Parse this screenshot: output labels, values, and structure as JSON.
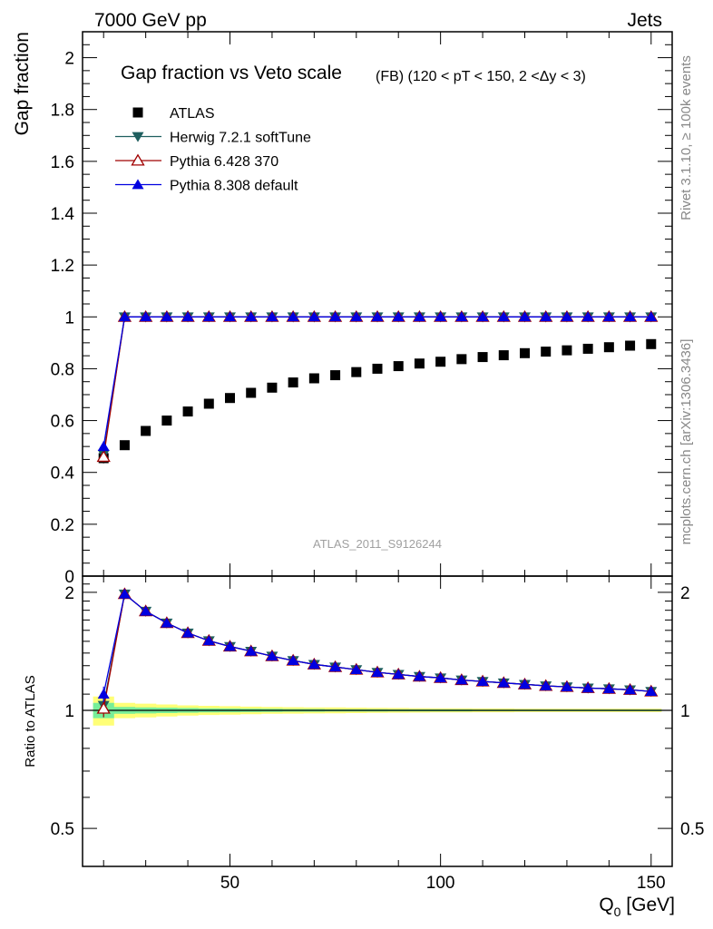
{
  "header": {
    "left": "7000 GeV pp",
    "right": "Jets"
  },
  "side_labels": {
    "rivet": "Rivet 3.1.10, ≥ 100k events",
    "mcplots": "mcplots.cern.ch [arXiv:1306.3436]"
  },
  "chart_data": [
    {
      "type": "scatter",
      "panel": "main",
      "title": "Gap fraction vs Veto scale",
      "subtitle": "(FB) (120 < pT < 150, 2 <Δy < 3)",
      "ylabel": "Gap fraction",
      "xlabel": "",
      "xlim": [
        15,
        155
      ],
      "ylim": [
        0,
        2.1
      ],
      "yticks": [
        0,
        0.2,
        0.4,
        0.6,
        0.8,
        1,
        1.2,
        1.4,
        1.6,
        1.8,
        2
      ],
      "ytick_labels": [
        "0",
        "0.2",
        "0.4",
        "0.6",
        "0.8",
        "1",
        "1.2",
        "1.4",
        "1.6",
        "1.8",
        "2"
      ],
      "watermark": "ATLAS_2011_S9126244",
      "legend_position": "top-left",
      "x": [
        20,
        25,
        30,
        35,
        40,
        45,
        50,
        55,
        60,
        65,
        70,
        75,
        80,
        85,
        90,
        95,
        100,
        105,
        110,
        115,
        120,
        125,
        130,
        135,
        140,
        145,
        150
      ],
      "series": [
        {
          "name": "ATLAS",
          "marker": "square",
          "color": "#000000",
          "values": [
            0.455,
            0.505,
            0.56,
            0.6,
            0.635,
            0.665,
            0.687,
            0.707,
            0.727,
            0.747,
            0.763,
            0.775,
            0.787,
            0.8,
            0.81,
            0.82,
            0.827,
            0.837,
            0.845,
            0.852,
            0.86,
            0.866,
            0.871,
            0.877,
            0.883,
            0.889,
            0.895
          ],
          "errors": [
            0.02,
            0.006,
            0.006,
            0.006,
            0.006,
            0.006,
            0.006,
            0.006,
            0.006,
            0.006,
            0.006,
            0.006,
            0.006,
            0.006,
            0.006,
            0.006,
            0.006,
            0.006,
            0.006,
            0.006,
            0.006,
            0.006,
            0.006,
            0.006,
            0.006,
            0.006,
            0.006
          ]
        },
        {
          "name": "Herwig 7.2.1 softTune",
          "marker": "triangle-down",
          "color": "#1f5f5f",
          "values": [
            0.47,
            1,
            1,
            1,
            1,
            1,
            1,
            1,
            1,
            1,
            1,
            1,
            1,
            1,
            1,
            1,
            1,
            1,
            1,
            1,
            1,
            1,
            1,
            1,
            1,
            1,
            1
          ],
          "errors": [
            0.02,
            0,
            0,
            0,
            0,
            0,
            0,
            0,
            0,
            0,
            0,
            0,
            0,
            0,
            0,
            0,
            0,
            0,
            0,
            0,
            0,
            0,
            0,
            0,
            0,
            0,
            0
          ]
        },
        {
          "name": "Pythia 6.428 370",
          "marker": "triangle-up-open",
          "color": "#a00000",
          "values": [
            0.46,
            1,
            1,
            1,
            1,
            1,
            1,
            1,
            1,
            1,
            1,
            1,
            1,
            1,
            1,
            1,
            1,
            1,
            1,
            1,
            1,
            1,
            1,
            1,
            1,
            1,
            1
          ],
          "errors": [
            0.02,
            0,
            0,
            0,
            0,
            0,
            0,
            0,
            0,
            0,
            0,
            0,
            0,
            0,
            0,
            0,
            0,
            0,
            0,
            0,
            0,
            0,
            0,
            0,
            0,
            0,
            0
          ]
        },
        {
          "name": "Pythia 8.308 default",
          "marker": "triangle-up",
          "color": "#0000e0",
          "values": [
            0.5,
            1,
            1,
            1,
            1,
            1,
            1,
            1,
            1,
            1,
            1,
            1,
            1,
            1,
            1,
            1,
            1,
            1,
            1,
            1,
            1,
            1,
            1,
            1,
            1,
            1,
            1
          ],
          "errors": [
            0.02,
            0,
            0,
            0,
            0,
            0,
            0,
            0,
            0,
            0,
            0,
            0,
            0,
            0,
            0,
            0,
            0,
            0,
            0,
            0,
            0,
            0,
            0,
            0,
            0,
            0,
            0
          ]
        }
      ]
    },
    {
      "type": "line",
      "panel": "ratio",
      "ylabel": "Ratio to ATLAS",
      "xlabel": "Q",
      "xlabel_sub": "0",
      "xlabel_unit": " [GeV]",
      "xlim": [
        15,
        155
      ],
      "ylim": [
        0.4,
        2.2
      ],
      "xticks": [
        50,
        100,
        150
      ],
      "xtick_labels": [
        "50",
        "100",
        "150"
      ],
      "yticks": [
        0.5,
        1,
        2
      ],
      "ytick_labels": [
        "0.5",
        "1",
        "2"
      ],
      "band_inner": [
        0.045,
        0.02,
        0.018,
        0.016,
        0.014,
        0.012,
        0.011,
        0.01,
        0.009,
        0.008,
        0.008,
        0.007,
        0.007,
        0.007,
        0.006,
        0.006,
        0.006,
        0.006,
        0.005,
        0.005,
        0.005,
        0.005,
        0.005,
        0.005,
        0.005,
        0.005,
        0.005
      ],
      "band_outer": [
        0.085,
        0.045,
        0.04,
        0.035,
        0.03,
        0.027,
        0.025,
        0.022,
        0.02,
        0.019,
        0.018,
        0.017,
        0.016,
        0.015,
        0.014,
        0.013,
        0.012,
        0.012,
        0.011,
        0.011,
        0.01,
        0.01,
        0.01,
        0.01,
        0.01,
        0.01,
        0.01
      ],
      "x": [
        20,
        25,
        30,
        35,
        40,
        45,
        50,
        55,
        60,
        65,
        70,
        75,
        80,
        85,
        90,
        95,
        100,
        105,
        110,
        115,
        120,
        125,
        130,
        135,
        140,
        145,
        150
      ],
      "series": [
        {
          "name": "Herwig 7.2.1 softTune",
          "marker": "triangle-down",
          "color": "#1f5f5f",
          "values": [
            1.03,
            1.98,
            1.79,
            1.67,
            1.575,
            1.505,
            1.455,
            1.415,
            1.375,
            1.34,
            1.31,
            1.29,
            1.27,
            1.25,
            1.235,
            1.22,
            1.21,
            1.195,
            1.185,
            1.175,
            1.165,
            1.155,
            1.148,
            1.14,
            1.135,
            1.128,
            1.118
          ]
        },
        {
          "name": "Pythia 6.428 370",
          "marker": "triangle-up-open",
          "color": "#a00000",
          "values": [
            1.01,
            1.98,
            1.79,
            1.67,
            1.575,
            1.505,
            1.455,
            1.415,
            1.375,
            1.34,
            1.31,
            1.29,
            1.27,
            1.25,
            1.235,
            1.22,
            1.21,
            1.195,
            1.185,
            1.175,
            1.165,
            1.155,
            1.148,
            1.14,
            1.135,
            1.128,
            1.118
          ]
        },
        {
          "name": "Pythia 8.308 default",
          "marker": "triangle-up",
          "color": "#0000e0",
          "values": [
            1.1,
            1.98,
            1.79,
            1.67,
            1.575,
            1.505,
            1.455,
            1.415,
            1.375,
            1.34,
            1.31,
            1.29,
            1.27,
            1.25,
            1.235,
            1.22,
            1.21,
            1.195,
            1.185,
            1.175,
            1.165,
            1.155,
            1.148,
            1.14,
            1.135,
            1.128,
            1.118
          ]
        }
      ]
    }
  ]
}
